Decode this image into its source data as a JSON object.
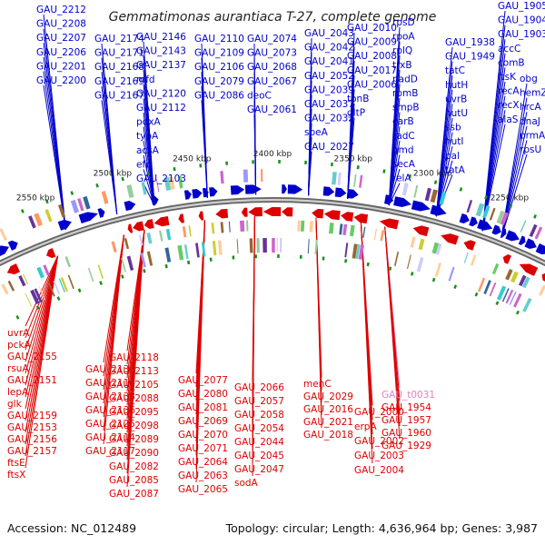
{
  "title": "Gemmatimonas aurantiaca T-27, complete genome",
  "footer": {
    "accession": "Accession: NC_012489",
    "stats": "Topology: circular; Length: 4,636,964 bp; Genes: 3,987"
  },
  "colors": {
    "forward": "#0000cc",
    "reverse": "#dd0000",
    "rna": "#e080c0",
    "backbone": "#888888",
    "tick": "#1a8f1a"
  },
  "scale_marks": [
    "2550 kbp",
    "2500 kbp",
    "2450 kbp",
    "2400 kbp",
    "2350 kbp",
    "2300 kbp",
    "2250 kbp"
  ],
  "forward_labels": [
    "GAU_2212",
    "GAU_2208",
    "GAU_2207",
    "GAU_2206",
    "GAU_2201",
    "GAU_2200",
    "GAU_2174",
    "GAU_2171",
    "GAU_2168",
    "GAU_2169",
    "GAU_2167",
    "GAU_2146",
    "GAU_2143",
    "GAU_2137",
    "mfd",
    "GAU_2120",
    "GAU_2112",
    "pdxA",
    "typA",
    "acsA",
    "efp",
    "GAU_2103",
    "GAU_2110",
    "GAU_2109",
    "GAU_2106",
    "GAU_2079",
    "GAU_2086",
    "GAU_2074",
    "GAU_2073",
    "GAU_2068",
    "GAU_2067",
    "deoC",
    "GAU_2061",
    "GAU_2043",
    "GAU_2042",
    "GAU_2041",
    "GAU_2052",
    "GAU_2039",
    "GAU_2037",
    "GAU_2032",
    "speA",
    "GAU_2027",
    "GAU_2010",
    "GAU_2009",
    "GAU_2008",
    "GAU_2017",
    "GAU_2006",
    "tonB",
    "gltP",
    "rpsD",
    "rpoA",
    "rplQ",
    "trxB",
    "nadD",
    "rpmB",
    "smpB",
    "carB",
    "radC",
    "gmd",
    "secA",
    "relA",
    "GAU_1938",
    "GAU_1949",
    "tatC",
    "hutH",
    "uvrB",
    "hutU",
    "ssb",
    "hutI",
    "pal",
    "tatA",
    "GAU_1905",
    "GAU_1904",
    "GAU_1903",
    "accC",
    "comB",
    "ftsK",
    "recA",
    "recX",
    "alaS",
    "obg",
    "hemZ",
    "hrcA",
    "dnaJ",
    "prmA",
    "rpsU"
  ],
  "reverse_labels": [
    "uvrA",
    "pckA",
    "GAU_2155",
    "rsuA",
    "GAU_2151",
    "lepA",
    "glk",
    "GAU_2159",
    "GAU_2153",
    "GAU_2156",
    "GAU_2157",
    "ftsE",
    "ftsX",
    "GAU_2130",
    "GAU_2116",
    "GAU_2138",
    "GAU_2136",
    "GAU_2125",
    "GAU_2114",
    "GAU_2117",
    "GAU_2118",
    "GAU_2113",
    "GAU_2105",
    "GAU_2088",
    "GAU_2095",
    "GAU_2098",
    "GAU_2089",
    "GAU_2090",
    "GAU_2082",
    "GAU_2085",
    "GAU_2087",
    "GAU_2077",
    "GAU_2080",
    "GAU_2081",
    "GAU_2069",
    "GAU_2070",
    "GAU_2071",
    "GAU_2064",
    "GAU_2063",
    "GAU_2065",
    "GAU_2066",
    "GAU_2057",
    "GAU_2058",
    "GAU_2054",
    "GAU_2044",
    "GAU_2045",
    "GAU_2047",
    "sodA",
    "menC",
    "GAU_2029",
    "GAU_2016",
    "GAU_2021",
    "GAU_2018",
    "GAU_2000",
    "erpA",
    "GAU_2002",
    "GAU_2003",
    "GAU_2004",
    "GAU_t0031",
    "GAU_1954",
    "GAU_1957",
    "GAU_1960",
    "GAU_1929"
  ]
}
